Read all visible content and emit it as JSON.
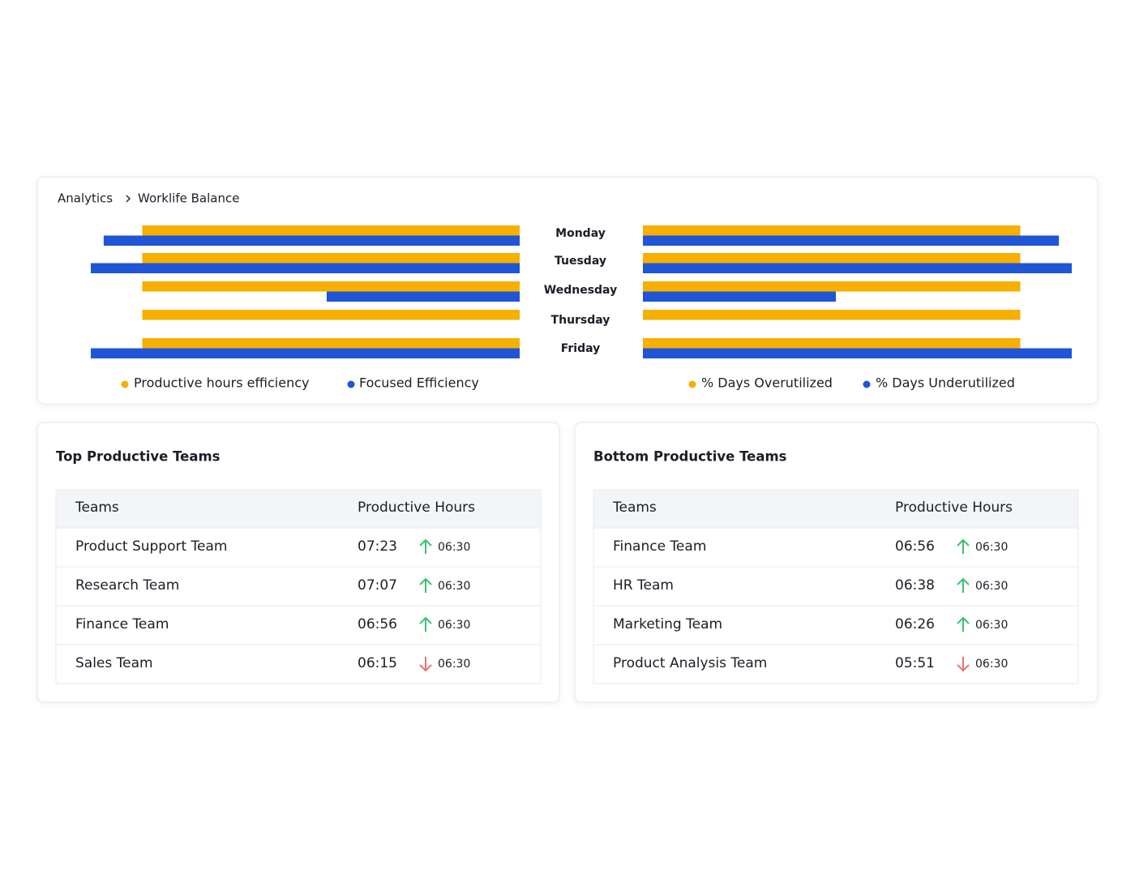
{
  "breadcrumb": {
    "items": [
      "Analytics",
      "Worklife Balance"
    ]
  },
  "chart_data": {
    "type": "bar",
    "orientation": "horizontal",
    "categories": [
      "Monday",
      "Tuesday",
      "Wednesday",
      "Thursday",
      "Friday"
    ],
    "xlim": [
      0,
      100
    ],
    "series": [
      {
        "name": "Productive hours efficiency",
        "color": "#f5b000",
        "side": "left",
        "values": [
          88,
          88,
          88,
          88,
          88
        ]
      },
      {
        "name": "Focused Efficiency",
        "color": "#1f55d6",
        "side": "left",
        "values": [
          97,
          100,
          45,
          0,
          100
        ]
      },
      {
        "name": "% Days Overutilized",
        "color": "#f5b000",
        "side": "right",
        "values": [
          88,
          88,
          88,
          88,
          88
        ]
      },
      {
        "name": "% Days Underutilized",
        "color": "#1f55d6",
        "side": "right",
        "values": [
          97,
          100,
          45,
          0,
          100
        ]
      }
    ]
  },
  "top_table": {
    "title": "Top Productive Teams",
    "columns": [
      "Teams",
      "Productive Hours"
    ],
    "rows": [
      {
        "team": "Product Support Team",
        "hours": "07:23",
        "trend": "up",
        "target": "06:30"
      },
      {
        "team": "Research Team",
        "hours": "07:07",
        "trend": "up",
        "target": "06:30"
      },
      {
        "team": "Finance Team",
        "hours": "06:56",
        "trend": "up",
        "target": "06:30"
      },
      {
        "team": "Sales Team",
        "hours": "06:15",
        "trend": "down",
        "target": "06:30"
      }
    ]
  },
  "bottom_table": {
    "title": "Bottom Productive Teams",
    "columns": [
      "Teams",
      "Productive Hours"
    ],
    "rows": [
      {
        "team": "Finance Team",
        "hours": "06:56",
        "trend": "up",
        "target": "06:30"
      },
      {
        "team": "HR Team",
        "hours": "06:38",
        "trend": "up",
        "target": "06:30"
      },
      {
        "team": "Marketing Team",
        "hours": "06:26",
        "trend": "up",
        "target": "06:30"
      },
      {
        "team": "Product Analysis Team",
        "hours": "05:51",
        "trend": "down",
        "target": "06:30"
      }
    ]
  }
}
